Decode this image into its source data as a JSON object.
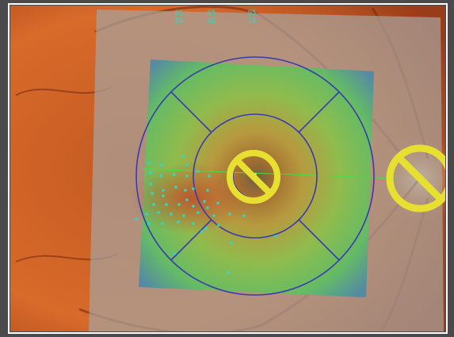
{
  "overlay_labels": [
    {
      "top": "95",
      "bottom": "58"
    },
    {
      "top": "95",
      "bottom": "88"
    },
    {
      "top": "95",
      "bottom": "70"
    }
  ]
}
